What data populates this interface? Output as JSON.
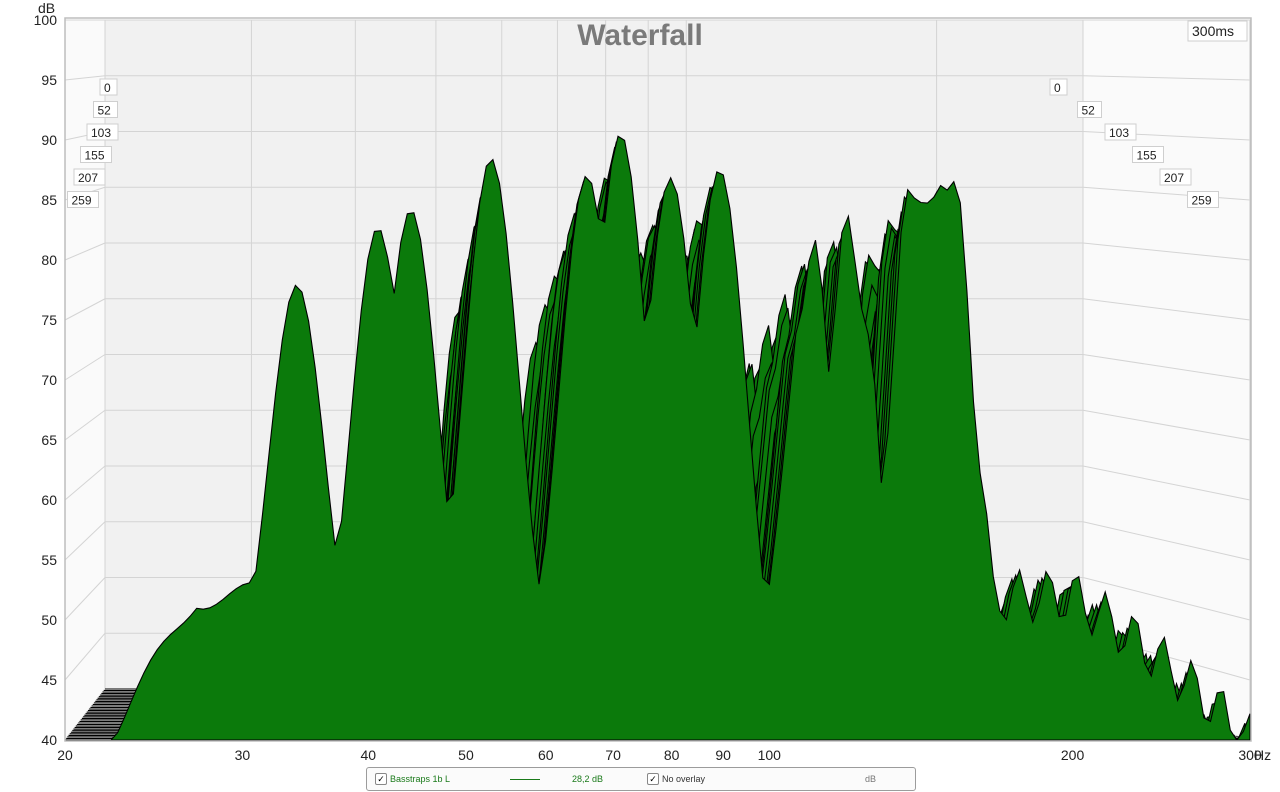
{
  "chart_data": {
    "type": "area",
    "title": "Waterfall",
    "y_unit": "dB",
    "x_unit": "Hz",
    "time_window_label": "300ms",
    "ylim": [
      40,
      100
    ],
    "xlim": [
      20,
      300
    ],
    "x_scale": "log",
    "y_ticks": [
      "100",
      "95",
      "90",
      "85",
      "80",
      "75",
      "70",
      "65",
      "60",
      "55",
      "50",
      "45",
      "40"
    ],
    "x_ticks": [
      "20",
      "30",
      "40",
      "50",
      "60",
      "70",
      "80",
      "90",
      "100",
      "200",
      "300"
    ],
    "time_slices_ms": [
      "0",
      "52",
      "103",
      "155",
      "207",
      "259"
    ],
    "fill_color": "#0b7a0b",
    "outline_color": "#000000",
    "front_slice_peaks": [
      {
        "freq_hz": 34,
        "level_db": 79
      },
      {
        "freq_hz": 41,
        "level_db": 83
      },
      {
        "freq_hz": 44,
        "level_db": 85
      },
      {
        "freq_hz": 53,
        "level_db": 89.5
      },
      {
        "freq_hz": 66,
        "level_db": 88
      },
      {
        "freq_hz": 71,
        "level_db": 90.5
      },
      {
        "freq_hz": 80,
        "level_db": 87
      },
      {
        "freq_hz": 89,
        "level_db": 87.5
      },
      {
        "freq_hz": 110,
        "level_db": 80
      },
      {
        "freq_hz": 120,
        "level_db": 82
      },
      {
        "freq_hz": 140,
        "level_db": 87
      },
      {
        "freq_hz": 150,
        "level_db": 88
      }
    ]
  },
  "legend": {
    "series_checkbox": "✓",
    "series_name": "Basstraps 1b L",
    "series_value": "28,2 dB",
    "overlay_checkbox": "✓",
    "overlay_label": "No overlay",
    "overlay_unit": "dB"
  }
}
